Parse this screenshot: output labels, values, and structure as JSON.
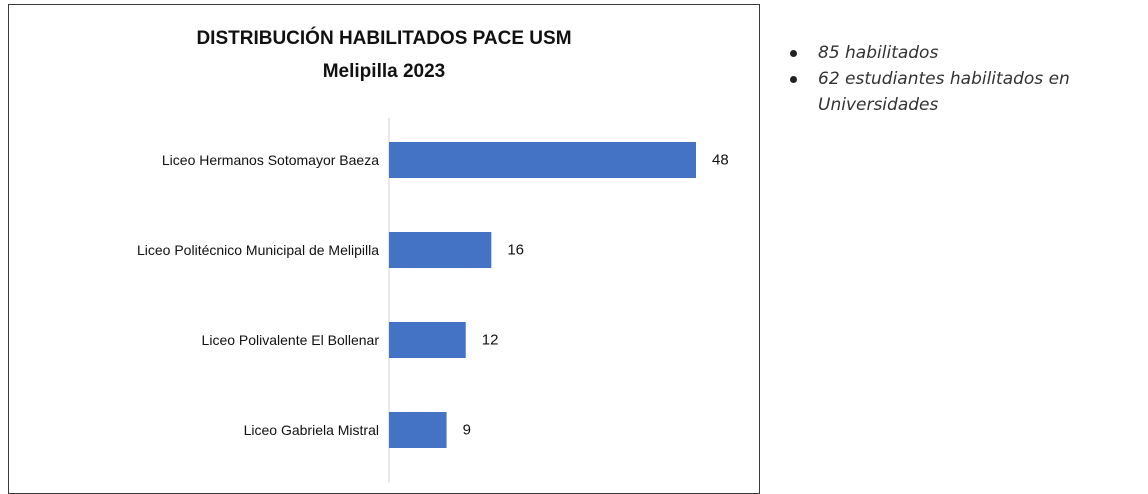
{
  "chart_data": {
    "type": "bar",
    "orientation": "horizontal",
    "title": "DISTRIBUCIÓN HABILITADOS PACE USM",
    "subtitle": "Melipilla 2023",
    "categories": [
      "Liceo Hermanos Sotomayor Baeza",
      "Liceo Politécnico Municipal de Melipilla",
      "Liceo Polivalente El Bollenar",
      "Liceo Gabriela Mistral"
    ],
    "values": [
      48,
      16,
      12,
      9
    ],
    "data_labels": [
      "48",
      "16",
      "12",
      "9"
    ],
    "bar_color": "#4472c4",
    "grid": false,
    "legend": "none"
  },
  "notes": {
    "items": [
      "85 habilitados",
      "62 estudiantes habilitados en Universidades"
    ]
  }
}
